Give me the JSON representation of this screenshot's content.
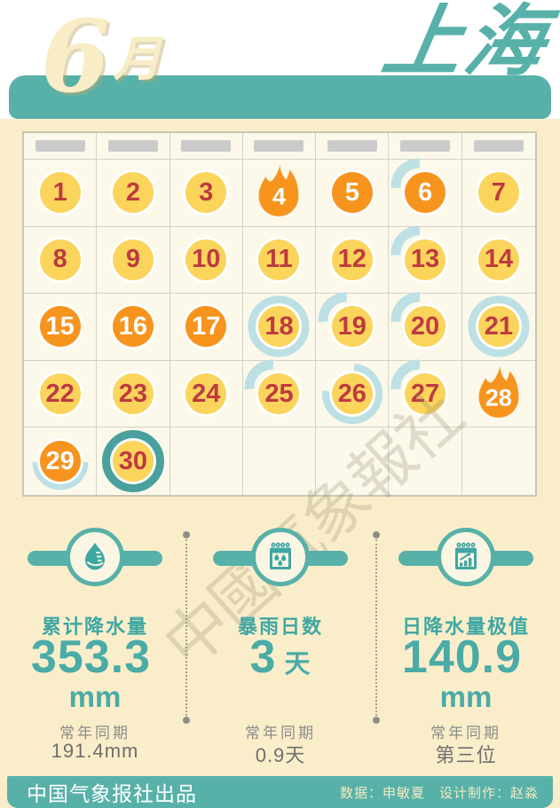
{
  "header": {
    "month_number": "6",
    "month_suffix": "月",
    "city": "上海"
  },
  "colors": {
    "teal": "#57B1A9",
    "teal_text": "#3FA7A3",
    "light_teal_arc": "#BCE0E4",
    "dark_teal_ring": "#4AA09C",
    "cream_bg": "#FAEECA",
    "panel_bg": "#FCF8EA",
    "day_yellow": "#FBD45C",
    "day_orange": "#F7941E",
    "day_red_text": "#BE3A3F",
    "gray_bar": "#CBCBCB"
  },
  "calendar": {
    "weekday_bar_count": 7,
    "total_cells": 35,
    "days": [
      {
        "n": 1,
        "style": "yellow",
        "marker": "none"
      },
      {
        "n": 2,
        "style": "yellow",
        "marker": "none"
      },
      {
        "n": 3,
        "style": "yellow",
        "marker": "none"
      },
      {
        "n": 4,
        "style": "flame",
        "marker": "none"
      },
      {
        "n": 5,
        "style": "orange",
        "marker": "none"
      },
      {
        "n": 6,
        "style": "orange",
        "marker": "quarter"
      },
      {
        "n": 7,
        "style": "yellow",
        "marker": "none"
      },
      {
        "n": 8,
        "style": "yellow",
        "marker": "none"
      },
      {
        "n": 9,
        "style": "yellow",
        "marker": "none"
      },
      {
        "n": 10,
        "style": "yellow",
        "marker": "none"
      },
      {
        "n": 11,
        "style": "yellow",
        "marker": "none"
      },
      {
        "n": 12,
        "style": "yellow",
        "marker": "none"
      },
      {
        "n": 13,
        "style": "yellow",
        "marker": "quarter"
      },
      {
        "n": 14,
        "style": "yellow",
        "marker": "none"
      },
      {
        "n": 15,
        "style": "orange",
        "marker": "none"
      },
      {
        "n": 16,
        "style": "orange",
        "marker": "none"
      },
      {
        "n": 17,
        "style": "orange",
        "marker": "none"
      },
      {
        "n": 18,
        "style": "yellow",
        "marker": "ring"
      },
      {
        "n": 19,
        "style": "yellow",
        "marker": "quarter"
      },
      {
        "n": 20,
        "style": "yellow",
        "marker": "quarter"
      },
      {
        "n": 21,
        "style": "yellow",
        "marker": "ring"
      },
      {
        "n": 22,
        "style": "yellow",
        "marker": "none"
      },
      {
        "n": 23,
        "style": "yellow",
        "marker": "none"
      },
      {
        "n": 24,
        "style": "yellow",
        "marker": "none"
      },
      {
        "n": 25,
        "style": "yellow",
        "marker": "quarter"
      },
      {
        "n": 26,
        "style": "yellow",
        "marker": "ring34"
      },
      {
        "n": 27,
        "style": "yellow",
        "marker": "quarter"
      },
      {
        "n": 28,
        "style": "flame",
        "marker": "none"
      },
      {
        "n": 29,
        "style": "orange",
        "marker": "half-bottom"
      },
      {
        "n": 30,
        "style": "yellow",
        "marker": "ring-dark"
      }
    ]
  },
  "watermark": {
    "text": "中國氣象報社"
  },
  "stats": {
    "items": [
      {
        "icon": "raindrop-gauge-icon",
        "label": "累计降水量",
        "value": "353.3",
        "unit_below": "mm",
        "normal_label": "常年同期",
        "normal_value": "191.4mm"
      },
      {
        "icon": "calendar-raindrops-icon",
        "label": "暴雨日数",
        "value": "3",
        "unit_inline": "天",
        "normal_label": "常年同期",
        "normal_value": "0.9天"
      },
      {
        "icon": "calendar-rising-chart-icon",
        "label": "日降水量极值",
        "value": "140.9",
        "unit_below": "mm",
        "normal_label": "常年同期",
        "normal_value": "第三位"
      }
    ]
  },
  "footer": {
    "publisher": "中国气象报社出品",
    "credits": "数据：申敏夏　设计制作：赵淼"
  }
}
